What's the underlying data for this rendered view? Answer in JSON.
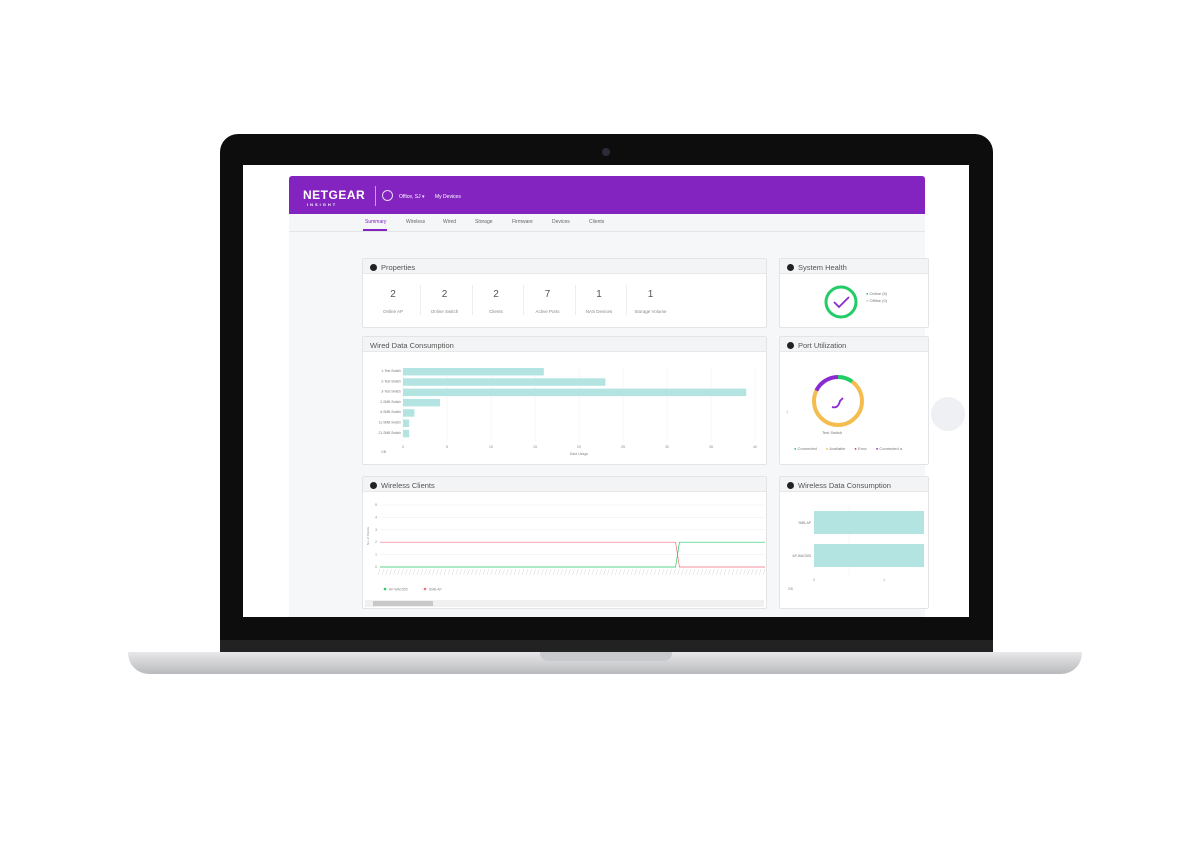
{
  "header": {
    "brand": "NETGEAR",
    "brand_sub": "INSIGHT",
    "org": "Office, SJ",
    "org_caret": "▾",
    "location": "My Devices"
  },
  "tabs": [
    "Summary",
    "Wireless",
    "Wired",
    "Storage",
    "Firmware",
    "Devices",
    "Clients"
  ],
  "properties": {
    "title": "Properties",
    "items": [
      {
        "value": "2",
        "label": "Online AP"
      },
      {
        "value": "2",
        "label": "Online Switch"
      },
      {
        "value": "2",
        "label": "Clients"
      },
      {
        "value": "7",
        "label": "Active Ports"
      },
      {
        "value": "1",
        "label": "NAS Devices"
      },
      {
        "value": "1",
        "label": "Storage Volume"
      }
    ]
  },
  "system_health": {
    "title": "System Health",
    "legend": [
      "Online (5)",
      "Offline (0)"
    ],
    "colors": {
      "online": "#22cc66",
      "offline": "#cccccc"
    }
  },
  "port_utilization": {
    "title": "Port Utilization",
    "device": "Test Switch",
    "legend": [
      "Connected",
      "Available",
      "Error",
      "Connected a"
    ],
    "colors": [
      "#22cc66",
      "#f5bd4f",
      "#e8344a",
      "#8a2ad0"
    ],
    "fractions": [
      0.1,
      0.72,
      0,
      0.18
    ]
  },
  "chart_data": [
    {
      "type": "bar",
      "title": "Wired Data Consumption",
      "orientation": "horizontal",
      "categories": [
        "1-Test Switch",
        "2-Test Switch",
        "3-Test Switch",
        "2-SMB Switch",
        "6-SMB Switch",
        "11-SMB Switch",
        "21-SMB Switch"
      ],
      "values": [
        16,
        23,
        39,
        4.2,
        1.3,
        0.7,
        0.7
      ],
      "xlim": [
        0,
        40
      ],
      "xticks": [
        "0",
        "5",
        "10",
        "15",
        "20",
        "25",
        "30",
        "35",
        "40"
      ],
      "xlabel": "Data Usage",
      "unit": "GB",
      "color": "#b4e4e2",
      "grid": true
    },
    {
      "type": "line",
      "title": "Wireless Clients",
      "ylabel": "No. of Clients",
      "ylim": [
        0,
        5
      ],
      "yticks": [
        "0",
        "1",
        "2",
        "3",
        "4",
        "5"
      ],
      "series": [
        {
          "name": "AP-WAC505",
          "color": "#22cc66",
          "values": [
            0,
            0,
            0,
            0,
            0,
            0,
            0,
            0,
            0,
            0,
            0,
            0,
            0,
            0,
            0,
            0,
            0,
            0,
            0,
            0,
            0,
            0,
            0,
            0,
            0,
            0,
            0,
            0,
            0,
            0,
            0,
            0,
            0,
            0,
            0,
            0,
            0,
            0,
            0,
            0,
            0,
            0,
            0,
            0,
            0,
            0,
            0,
            0,
            0,
            0,
            0,
            0,
            0,
            0,
            0,
            0,
            0,
            0,
            0,
            0,
            0,
            0,
            0,
            0,
            0,
            0,
            0,
            0,
            0,
            0,
            0,
            0,
            0,
            0,
            0,
            0,
            0,
            2,
            2,
            2,
            2,
            2,
            2,
            2,
            2,
            2,
            2,
            2,
            2,
            2,
            2,
            2,
            2,
            2,
            2,
            2,
            2,
            2,
            2,
            2
          ]
        },
        {
          "name": "SMB-AP",
          "color": "#f07080",
          "values": [
            2,
            2,
            2,
            2,
            2,
            2,
            2,
            2,
            2,
            2,
            2,
            2,
            2,
            2,
            2,
            2,
            2,
            2,
            2,
            2,
            2,
            2,
            2,
            2,
            2,
            2,
            2,
            2,
            2,
            2,
            2,
            2,
            2,
            2,
            2,
            2,
            2,
            2,
            2,
            2,
            2,
            2,
            2,
            2,
            2,
            2,
            2,
            2,
            2,
            2,
            2,
            2,
            2,
            2,
            2,
            2,
            2,
            2,
            2,
            2,
            2,
            2,
            2,
            2,
            2,
            2,
            2,
            2,
            2,
            2,
            2,
            2,
            2,
            2,
            2,
            2,
            2,
            0,
            0,
            0,
            0,
            0,
            0,
            0,
            0,
            0,
            0,
            0,
            0,
            0,
            0,
            0,
            0,
            0,
            0,
            0,
            0,
            0,
            0,
            0
          ]
        }
      ]
    },
    {
      "type": "bar",
      "title": "Wireless Data Consumption",
      "orientation": "horizontal",
      "categories": [
        "SMB-AP",
        "AP-WAC505"
      ],
      "values": [
        3,
        3
      ],
      "xticks": [
        "0",
        "1"
      ],
      "unit": "GB",
      "color": "#b4e4e2"
    }
  ]
}
